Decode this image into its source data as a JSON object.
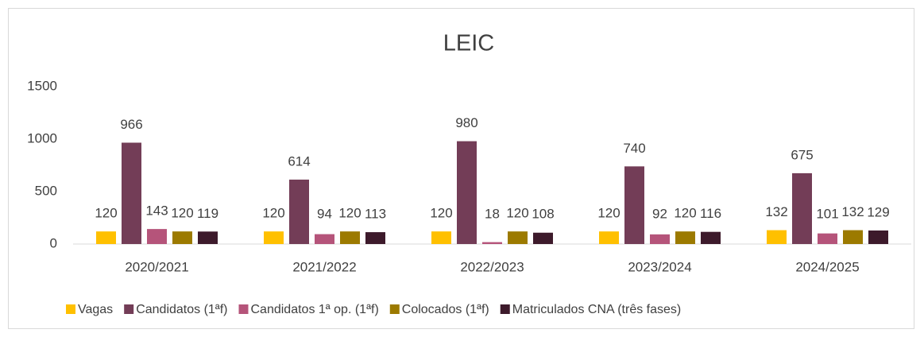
{
  "chart_data": {
    "type": "bar",
    "title": "LEIC",
    "categories": [
      "2020/2021",
      "2021/2022",
      "2022/2023",
      "2023/2024",
      "2024/2025"
    ],
    "series": [
      {
        "name": "Vagas",
        "color": "#FFC000",
        "values": [
          120,
          120,
          120,
          120,
          132
        ]
      },
      {
        "name": "Candidatos (1ªf)",
        "color": "#733D57",
        "values": [
          966,
          614,
          980,
          740,
          675
        ]
      },
      {
        "name": "Candidatos 1ª op. (1ªf)",
        "color": "#B5547A",
        "values": [
          143,
          94,
          18,
          92,
          101
        ]
      },
      {
        "name": "Colocados (1ªf)",
        "color": "#9C7A00",
        "values": [
          120,
          120,
          120,
          120,
          132
        ]
      },
      {
        "name": "Matriculados CNA (três fases)",
        "color": "#3D1A2B",
        "values": [
          119,
          113,
          108,
          116,
          129
        ]
      }
    ],
    "ylim": [
      0,
      1500
    ],
    "yticks": [
      0,
      500,
      1000,
      1500
    ],
    "grid": false,
    "legend": "bottom"
  }
}
